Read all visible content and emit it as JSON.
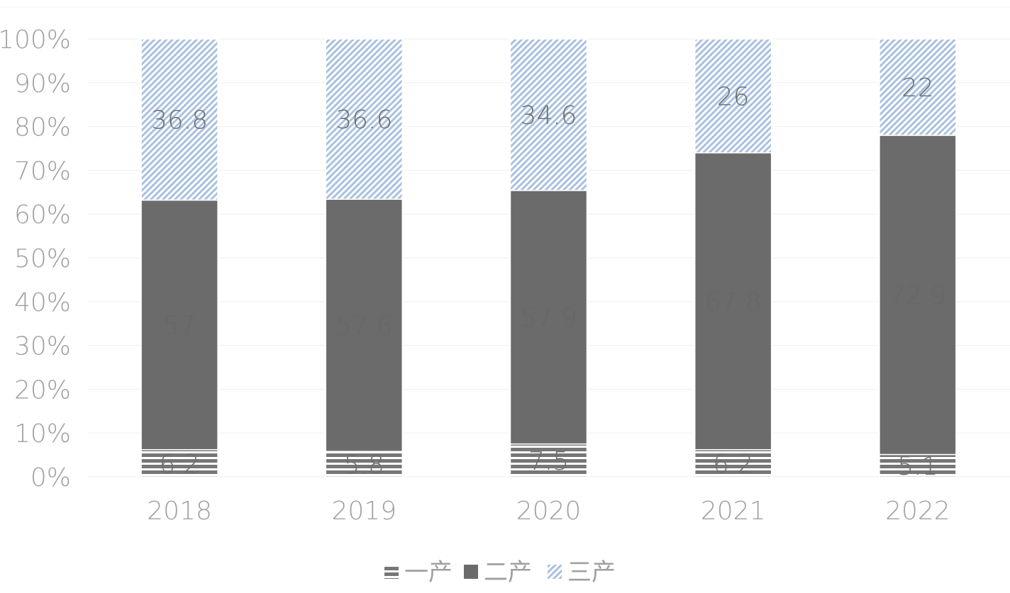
{
  "chart_data": {
    "type": "bar",
    "stacked": "percent",
    "categories": [
      "2018",
      "2019",
      "2020",
      "2021",
      "2022"
    ],
    "series": [
      {
        "name": "一产",
        "values": [
          6.2,
          5.8,
          7.5,
          6.2,
          5.1
        ],
        "labels": [
          "6.2",
          "5.8",
          "7.5",
          "6.2",
          "5.1"
        ],
        "color": "#767676",
        "pattern": "horizontal-stripes"
      },
      {
        "name": "二产",
        "values": [
          57,
          57.6,
          57.9,
          67.8,
          72.9
        ],
        "labels": [
          "57",
          "57.6",
          "57.9",
          "67.8",
          "72.9"
        ],
        "color": "#6b6b6b",
        "pattern": "solid"
      },
      {
        "name": "三产",
        "values": [
          36.8,
          36.6,
          34.6,
          26,
          22
        ],
        "labels": [
          "36.8",
          "36.6",
          "34.6",
          "26",
          "22"
        ],
        "color": "#a9c1e0",
        "pattern": "diagonal-stripes"
      }
    ],
    "y_ticks": [
      "0%",
      "10%",
      "20%",
      "30%",
      "40%",
      "50%",
      "60%",
      "70%",
      "80%",
      "90%",
      "100%"
    ],
    "ylim": [
      0,
      100
    ],
    "grid": true,
    "legend": "bottom"
  }
}
